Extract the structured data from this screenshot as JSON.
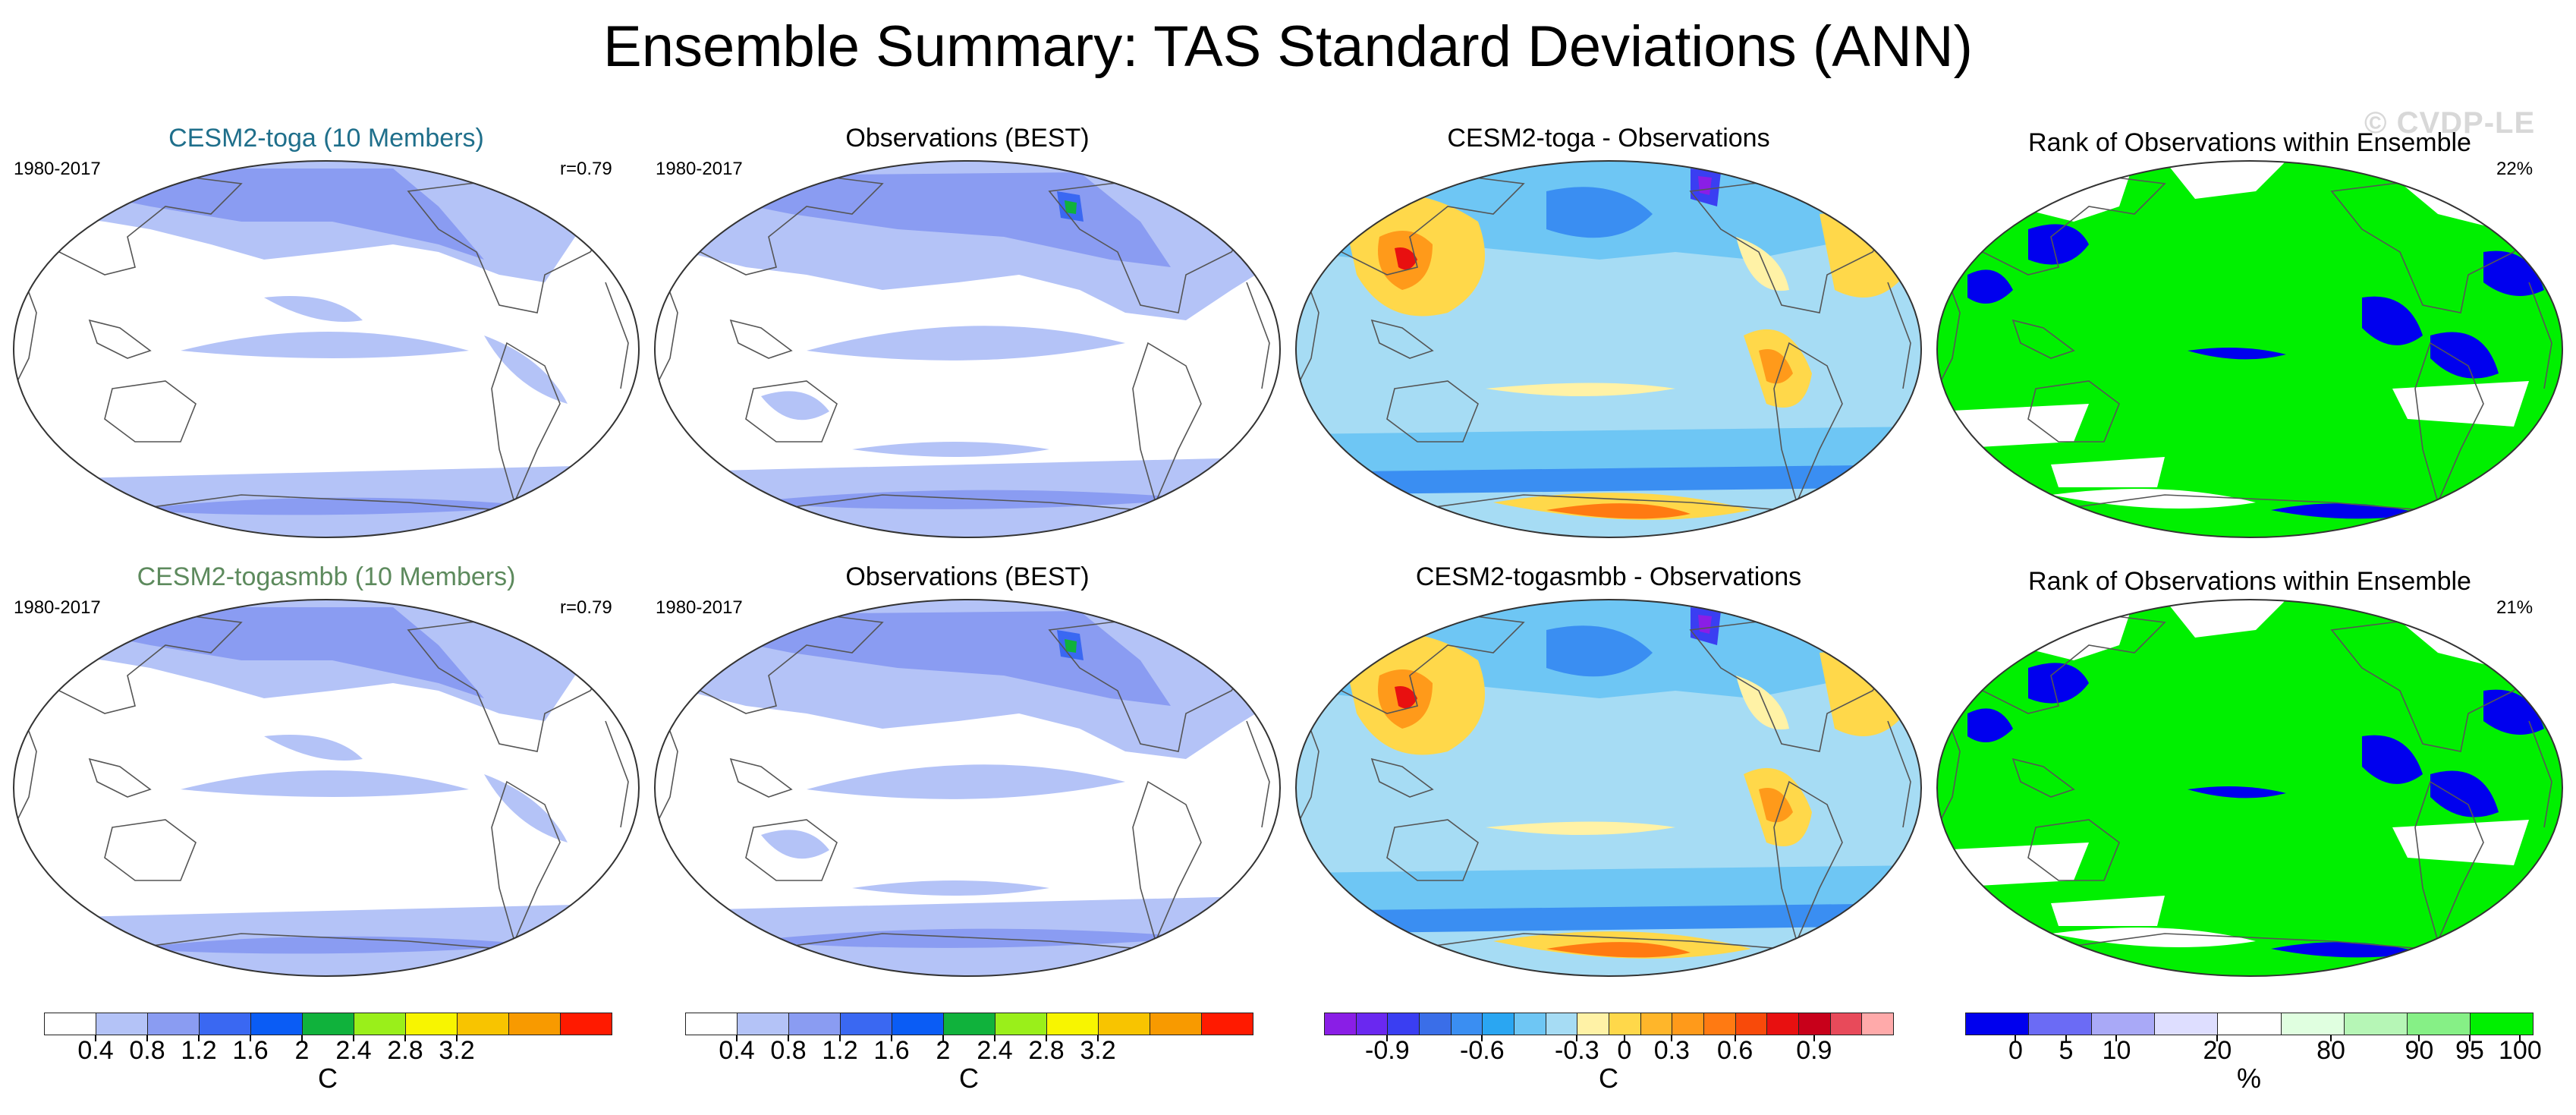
{
  "figure": {
    "title": "Ensemble Summary: TAS Standard Deviations (ANN)",
    "watermark": "© CVDP-LE"
  },
  "colors": {
    "title_row1": "#1f6f8b",
    "title_row2": "#5d8a5d",
    "std_palette": [
      "#ffffff",
      "#b4c3f7",
      "#8a9cf2",
      "#3a68f2",
      "#0a5cf5",
      "#10b23c",
      "#9aef1a",
      "#f8f500",
      "#f8c400",
      "#f89a00",
      "#ff1a00"
    ],
    "diff_palette": [
      "#8a1ee6",
      "#6a28f0",
      "#3a3ef2",
      "#3a6ee8",
      "#3a8ef2",
      "#2aa6f2",
      "#6ec6f4",
      "#a6dcf4",
      "#fff2a6",
      "#ffd84a",
      "#ffb62a",
      "#ff9a1a",
      "#ff7a12",
      "#f84a0a",
      "#e81010",
      "#c8001a",
      "#e84a5a",
      "#ffaaaa"
    ],
    "rank_palette": [
      "#0000ee",
      "#6b6bf5",
      "#a9a9f7",
      "#dedeff",
      "#ffffff",
      "#e0ffe0",
      "#b6f6b6",
      "#86f086",
      "#00f000"
    ]
  },
  "panels": [
    {
      "title": "CESM2-toga (10 Members)",
      "left_label": "1980-2017",
      "right_label": "r=0.79",
      "kind": "std_model"
    },
    {
      "title": "Observations (BEST)",
      "left_label": "1980-2017",
      "right_label": "",
      "kind": "std_obs"
    },
    {
      "title": "CESM2-toga - Observations",
      "left_label": "",
      "right_label": "",
      "kind": "diff"
    },
    {
      "title": "Rank of Observations within Ensemble",
      "left_label": "",
      "right_label": "22%",
      "kind": "rank"
    },
    {
      "title": "CESM2-togasmbb (10 Members)",
      "left_label": "1980-2017",
      "right_label": "r=0.79",
      "kind": "std_model"
    },
    {
      "title": "Observations (BEST)",
      "left_label": "1980-2017",
      "right_label": "",
      "kind": "std_obs"
    },
    {
      "title": "CESM2-togasmbb - Observations",
      "left_label": "",
      "right_label": "",
      "kind": "diff"
    },
    {
      "title": "Rank of Observations within Ensemble",
      "left_label": "",
      "right_label": "21%",
      "kind": "rank"
    }
  ],
  "colorbars": [
    {
      "unit": "C",
      "ticks": [
        "0.4",
        "0.8",
        "1.2",
        "1.6",
        "2",
        "2.4",
        "2.8",
        "3.2"
      ]
    },
    {
      "unit": "C",
      "ticks": [
        "0.4",
        "0.8",
        "1.2",
        "1.6",
        "2",
        "2.4",
        "2.8",
        "3.2"
      ]
    },
    {
      "unit": "C",
      "ticks": [
        "-0.9",
        "-0.6",
        "-0.3",
        "0",
        "0.3",
        "0.6",
        "0.9"
      ]
    },
    {
      "unit": "%",
      "ticks": [
        "0",
        "5",
        "10",
        "20",
        "80",
        "90",
        "95",
        "100"
      ]
    }
  ]
}
